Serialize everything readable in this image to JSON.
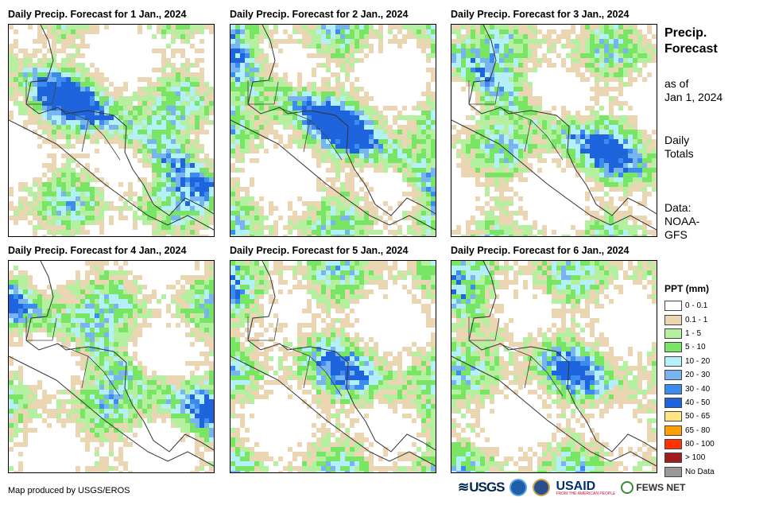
{
  "panels": [
    {
      "title": "Daily Precip. Forecast for 1 Jan., 2024",
      "seed": 11,
      "wet": 1.3
    },
    {
      "title": "Daily Precip. Forecast for 2 Jan., 2024",
      "seed": 27,
      "wet": 1.4
    },
    {
      "title": "Daily Precip. Forecast for 3 Jan., 2024",
      "seed": 43,
      "wet": 1.0
    },
    {
      "title": "Daily Precip. Forecast for 4 Jan., 2024",
      "seed": 59,
      "wet": 0.9
    },
    {
      "title": "Daily Precip. Forecast for 5 Jan., 2024",
      "seed": 71,
      "wet": 0.75
    },
    {
      "title": "Daily Precip. Forecast for 6 Jan., 2024",
      "seed": 89,
      "wet": 0.7
    }
  ],
  "side": {
    "title_line1": "Precip.",
    "title_line2": "Forecast",
    "asof_line1": "as of",
    "asof_line2": "Jan 1, 2024",
    "totals_line1": "Daily",
    "totals_line2": "Totals",
    "data_line1": "Data:",
    "data_line2": "NOAA-",
    "data_line3": "GFS"
  },
  "legend": {
    "title": "PPT (mm)",
    "items": [
      {
        "label": "0 - 0.1",
        "color": "#ffffff"
      },
      {
        "label": "0.1 - 1",
        "color": "#ebd6b4"
      },
      {
        "label": "1 - 5",
        "color": "#b4f0a0"
      },
      {
        "label": "5 - 10",
        "color": "#78e664"
      },
      {
        "label": "10 - 20",
        "color": "#b4f0fa"
      },
      {
        "label": "20 - 30",
        "color": "#78b4f0"
      },
      {
        "label": "30 - 40",
        "color": "#3c8cf0"
      },
      {
        "label": "40 - 50",
        "color": "#1e64dc"
      },
      {
        "label": "50 - 65",
        "color": "#ffe682"
      },
      {
        "label": "65 - 80",
        "color": "#ffa000"
      },
      {
        "label": "80 - 100",
        "color": "#ff3200"
      },
      {
        "label": "> 100",
        "color": "#a01e1e"
      },
      {
        "label": "No Data",
        "color": "#999999"
      }
    ]
  },
  "footer": {
    "credit": "Map produced by USGS/EROS",
    "usgs": "USGS",
    "usaid": "USAID",
    "usaid_sub": "FROM THE AMERICAN PEOPLE",
    "fews": "FEWS NET"
  }
}
